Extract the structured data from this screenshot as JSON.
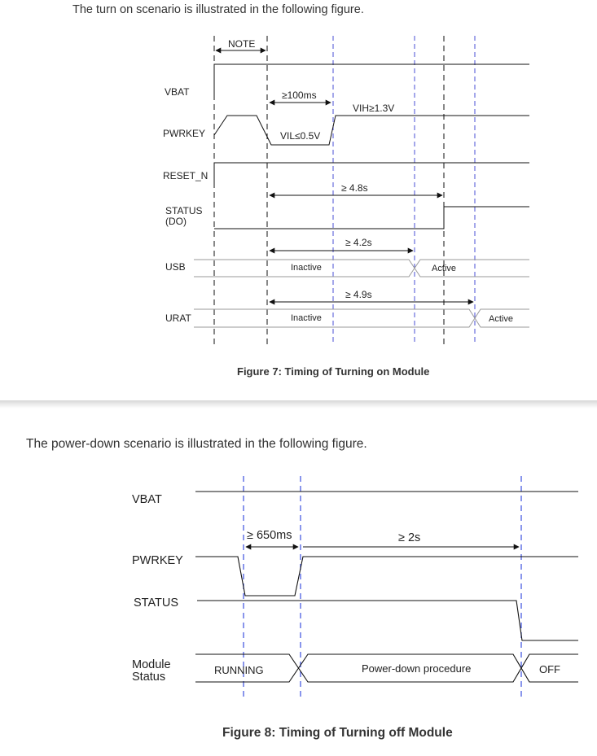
{
  "fig7": {
    "intro": "The turn on scenario is illustrated in the following figure.",
    "labels": {
      "vbat": "VBAT",
      "pwrkey": "PWRKEY",
      "reset": "RESET_N",
      "status_1": "STATUS",
      "status_2": "(DO)",
      "usb": "USB",
      "urat": "URAT"
    },
    "annotations": {
      "note": "NOTE",
      "t100ms": "≥100ms",
      "vih": "VIH≥1.3V",
      "vil": "VIL≤0.5V",
      "t48": "≥ 4.8s",
      "t42": "≥ 4.2s",
      "t49": "≥ 4.9s",
      "usb_inactive": "Inactive",
      "usb_active": "Active",
      "urat_inactive": "Inactive",
      "urat_active": "Active"
    },
    "caption": "Figure 7: Timing of Turning on Module"
  },
  "fig8": {
    "intro": "The power-down scenario is illustrated in the following figure.",
    "labels": {
      "vbat": "VBAT",
      "pwrkey": "PWRKEY",
      "status": "STATUS",
      "module_1": "Module",
      "module_2": "Status"
    },
    "annotations": {
      "t650": "≥ 650ms",
      "t2s": "≥ 2s",
      "running": "RUNNING",
      "powerdown": "Power-down procedure",
      "off": "OFF"
    },
    "caption": "Figure 8: Timing of Turning off Module"
  },
  "colors": {
    "guide_blue": "#4a4fd6",
    "signal": "#111111",
    "bus_gray": "#9a9a9a",
    "text": "#333333"
  }
}
